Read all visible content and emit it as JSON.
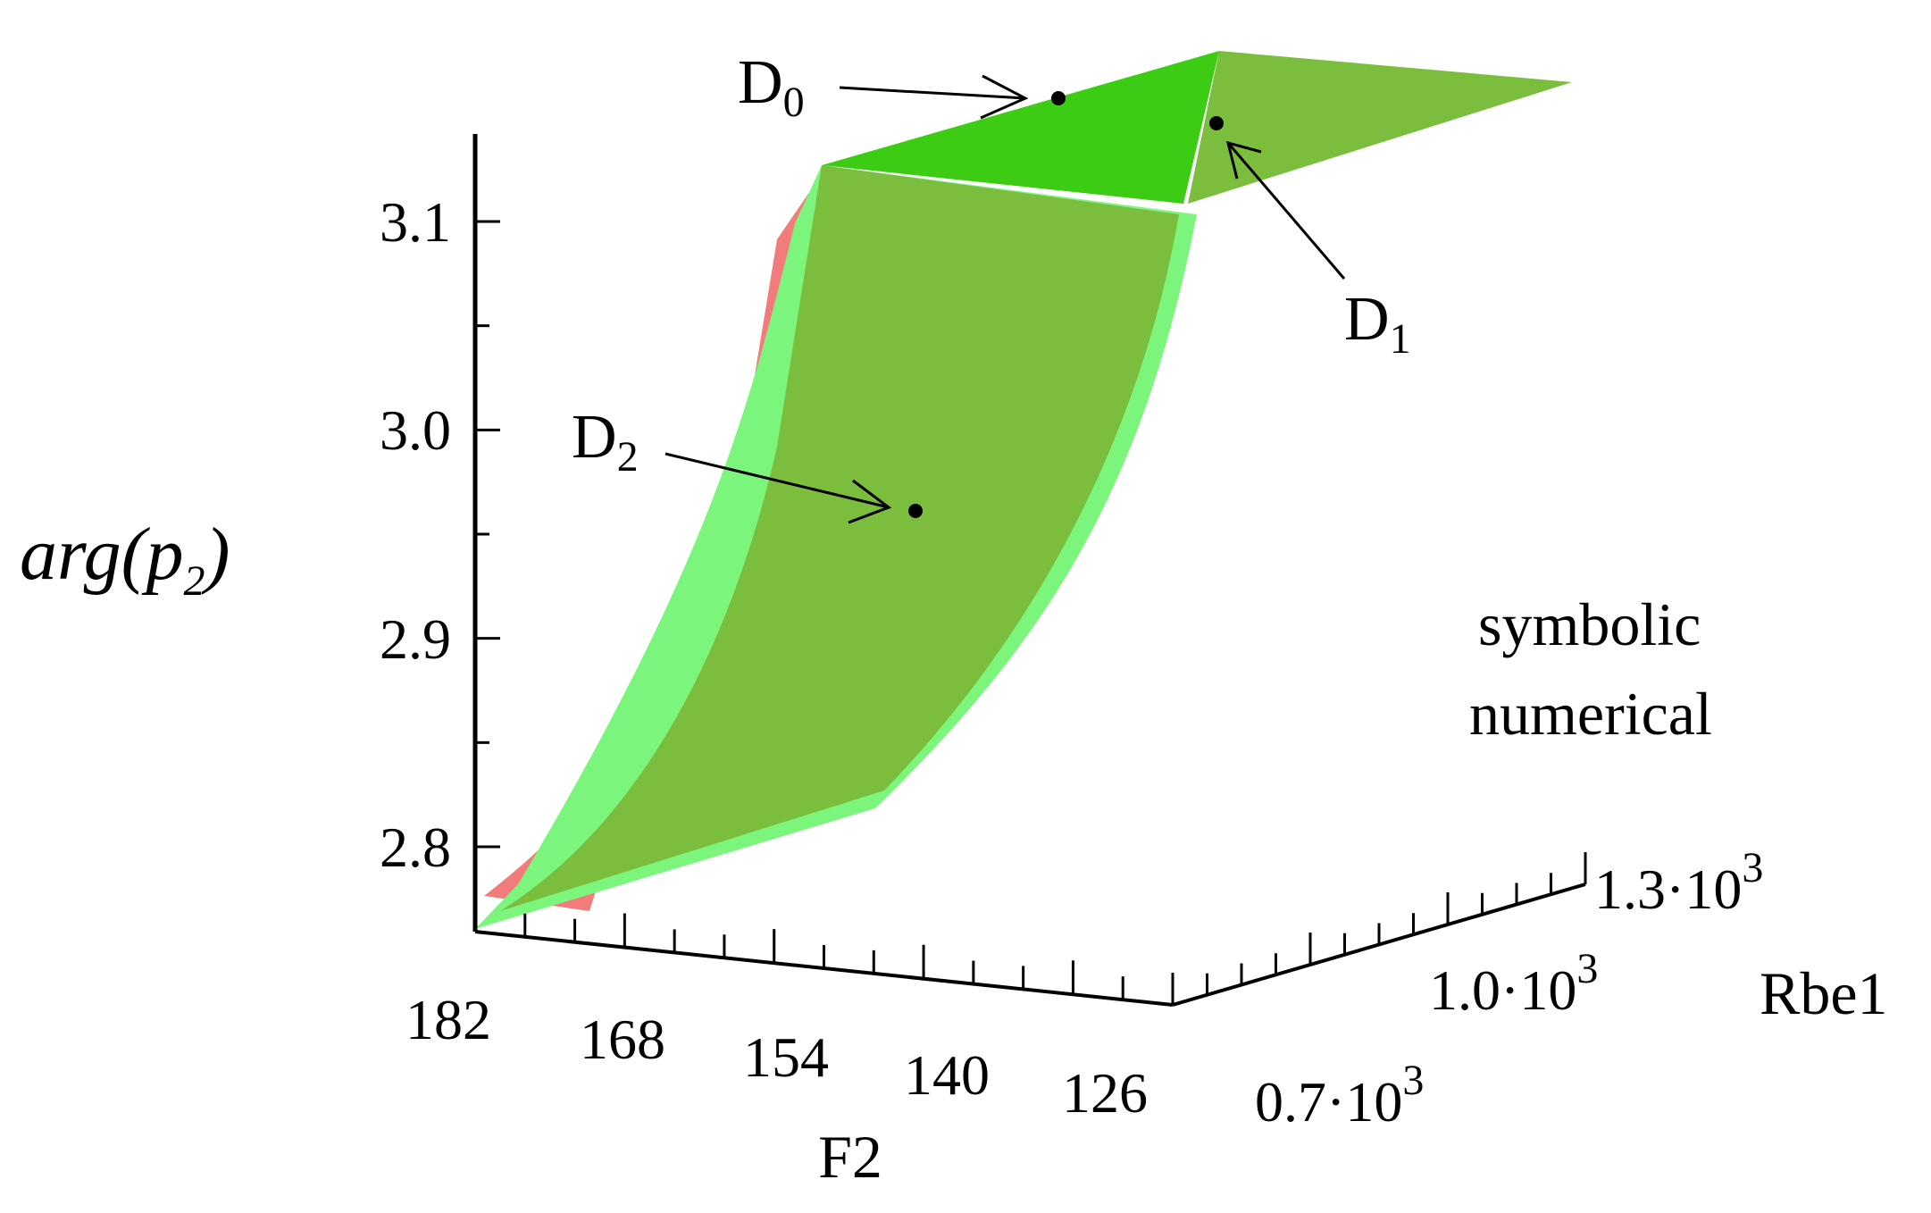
{
  "chart_data": {
    "type": "surface3d",
    "title": "",
    "axes": {
      "z": {
        "label_base": "arg(p",
        "label_sub": "2",
        "label_close": ")",
        "ticks": [
          "2.8",
          "2.9",
          "3.0",
          "3.1"
        ],
        "tick_values": [
          2.8,
          2.9,
          3.0,
          3.1
        ],
        "range": [
          2.76,
          3.14
        ]
      },
      "x": {
        "label": "F2",
        "ticks": [
          "182",
          "168",
          "154",
          "140",
          "126"
        ],
        "tick_values": [
          182,
          168,
          154,
          140,
          126
        ],
        "range": [
          126,
          182
        ]
      },
      "y": {
        "label": "Rbe1",
        "ticks": [
          {
            "mantissa": "0.7",
            "dot": "·",
            "base": "10",
            "exp": "3"
          },
          {
            "mantissa": "1.0",
            "dot": "·",
            "base": "10",
            "exp": "3"
          },
          {
            "mantissa": "1.3",
            "dot": "·",
            "base": "10",
            "exp": "3"
          }
        ],
        "tick_values": [
          700,
          1000,
          1300
        ],
        "range": [
          700,
          1300
        ]
      }
    },
    "legend": {
      "placement": "right",
      "entries": [
        {
          "label": "symbolic",
          "color": "#22c33a"
        },
        {
          "label": "numerical",
          "color": "#ee2b4a"
        }
      ]
    },
    "series": [
      {
        "name": "symbolic",
        "color": "#6fd65b"
      },
      {
        "name": "numerical",
        "color": "#f07a7a"
      }
    ],
    "points": [
      {
        "label": "D",
        "sub": "0",
        "F2": 154,
        "Rbe1": 1300,
        "arg": 3.14
      },
      {
        "label": "D",
        "sub": "1",
        "F2": 126,
        "Rbe1": 1300,
        "arg": 3.13
      },
      {
        "label": "D",
        "sub": "2",
        "F2": 154,
        "Rbe1": 1000,
        "arg": 2.96
      }
    ],
    "surface_colors": {
      "overlap": "#7bbe3e",
      "top_edge": "#3ccc14",
      "symbolic_edge": "#7cf57c",
      "numerical_edge": "#f27c7c"
    }
  }
}
